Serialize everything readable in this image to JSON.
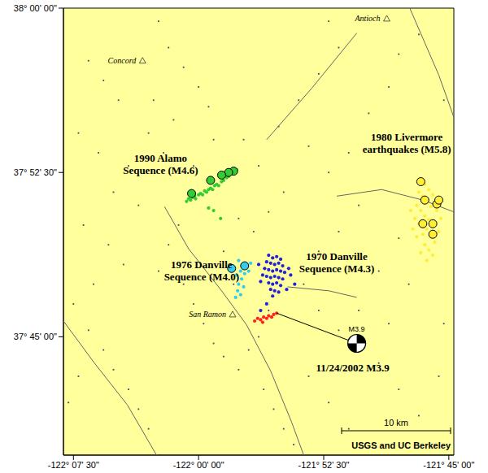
{
  "chart_data": {
    "type": "scatter",
    "grid": false,
    "xlim": [
      -122.135,
      -121.745
    ],
    "ylim": [
      37.66,
      38.0
    ],
    "xticks": [
      {
        "value": -122.125,
        "label": "-122° 07' 30\""
      },
      {
        "value": -122.0,
        "label": "-122° 00' 00\""
      },
      {
        "value": -121.875,
        "label": "-121° 52' 30\""
      },
      {
        "value": -121.75,
        "label": "-121° 45' 00\""
      }
    ],
    "yticks": [
      {
        "value": 37.75,
        "label": "37° 45' 00\""
      },
      {
        "value": 37.875,
        "label": "37° 52' 30\""
      },
      {
        "value": 38.0,
        "label": "38° 00' 00\""
      }
    ],
    "series": [
      {
        "type": "scatter",
        "marker": "dot",
        "color": "#444466",
        "x": [
          -122.11,
          -122.095,
          -122.08,
          -122.12,
          -122.1,
          -122.07,
          -122.085,
          -122.06,
          -122.115,
          -122.09,
          -122.075,
          -122.105,
          -122.125,
          -122.11,
          -122.095,
          -122.085,
          -122.07,
          -122.06,
          -122.05,
          -122.12,
          -122.13,
          -122.04,
          -122.03,
          -122.015,
          -122.0,
          -121.99,
          -122.045,
          -122.025,
          -121.985,
          -122.05,
          -122.035,
          -122.02,
          -122.03,
          -122.04,
          -122.015,
          -122.005,
          -121.995,
          -121.985,
          -121.975,
          -121.96,
          -121.95,
          -121.935,
          -121.925,
          -121.915,
          -121.905,
          -121.94,
          -121.93,
          -121.945,
          -121.96,
          -121.93,
          -121.915,
          -121.94,
          -121.955,
          -121.92,
          -121.9,
          -121.88,
          -121.86,
          -121.87,
          -121.89,
          -121.87,
          -121.85,
          -121.83,
          -121.81,
          -121.8,
          -121.84,
          -121.86,
          -121.88,
          -121.895,
          -121.88,
          -121.86,
          -121.84,
          -121.82,
          -121.8,
          -121.79,
          -121.81,
          -121.82,
          -121.8,
          -121.78,
          -121.76,
          -121.755,
          -121.77,
          -121.755,
          -121.78,
          -121.89,
          -121.87,
          -121.85,
          -121.99,
          -122.005,
          -121.975,
          -121.965
        ],
        "y": [
          37.96,
          37.945,
          37.93,
          37.905,
          37.89,
          37.88,
          37.86,
          37.85,
          37.835,
          37.82,
          37.805,
          37.79,
          37.775,
          37.755,
          37.74,
          37.725,
          37.71,
          37.695,
          37.68,
          37.72,
          37.7,
          37.99,
          37.97,
          37.955,
          37.94,
          37.925,
          37.93,
          37.915,
          37.9,
          37.905,
          37.89,
          37.835,
          37.82,
          37.8,
          37.79,
          37.775,
          37.76,
          37.745,
          37.735,
          37.725,
          37.74,
          37.71,
          37.695,
          37.68,
          37.668,
          37.75,
          37.77,
          37.83,
          37.84,
          37.845,
          37.86,
          37.88,
          37.9,
          37.91,
          37.93,
          37.95,
          37.97,
          37.99,
          37.895,
          37.875,
          37.89,
          37.92,
          37.94,
          37.965,
          37.85,
          37.83,
          37.815,
          37.79,
          37.77,
          37.755,
          37.77,
          37.8,
          37.825,
          37.79,
          37.76,
          37.73,
          37.71,
          37.69,
          37.72,
          37.76,
          37.9,
          37.93,
          37.98,
          37.72,
          37.7,
          37.68,
          37.87,
          37.88,
          37.815,
          37.79
        ]
      },
      {
        "type": "line",
        "color": "#666666",
        "x": [
          -122.034,
          -122.01,
          -121.977,
          -121.952,
          -121.928,
          -121.907,
          -121.895
        ],
        "y": [
          37.849,
          37.817,
          37.785,
          37.759,
          37.724,
          37.685,
          37.66
        ]
      },
      {
        "type": "line",
        "color": "#666666",
        "x": [
          -121.932,
          -121.887,
          -121.842
        ],
        "y": [
          37.9,
          37.939,
          37.981
        ]
      },
      {
        "type": "line",
        "color": "#666666",
        "x": [
          -121.862,
          -121.817,
          -121.776,
          -121.745
        ],
        "y": [
          37.857,
          37.862,
          37.854,
          37.845
        ]
      },
      {
        "type": "line",
        "color": "#666666",
        "x": [
          -121.789,
          -121.76,
          -121.745
        ],
        "y": [
          38.0,
          37.949,
          37.917
        ]
      },
      {
        "type": "line",
        "color": "#666666",
        "x": [
          -122.135,
          -122.104,
          -122.071,
          -122.042
        ],
        "y": [
          37.762,
          37.73,
          37.698,
          37.66
        ]
      },
      {
        "type": "line",
        "color": "#666666",
        "x": [
          -121.911,
          -121.87,
          -121.842
        ],
        "y": [
          37.788,
          37.785,
          37.78
        ]
      },
      {
        "type": "scatter",
        "marker": "point",
        "color": "#33cc33",
        "x": [
          -122.012,
          -122.01,
          -122.008,
          -122.006,
          -122.004,
          -122.003,
          -122.0,
          -121.998,
          -121.996,
          -121.994,
          -121.992,
          -121.99,
          -121.988,
          -121.986,
          -121.984,
          -121.982,
          -121.98,
          -121.977,
          -121.975,
          -121.972,
          -121.97,
          -121.967,
          -121.964,
          -121.962,
          -121.985,
          -121.978,
          -121.99
        ],
        "y": [
          37.853,
          37.855,
          37.854,
          37.856,
          37.857,
          37.855,
          37.858,
          37.859,
          37.858,
          37.861,
          37.86,
          37.862,
          37.863,
          37.862,
          37.865,
          37.866,
          37.865,
          37.868,
          37.869,
          37.871,
          37.872,
          37.874,
          37.875,
          37.877,
          37.846,
          37.84,
          37.848
        ]
      },
      {
        "type": "scatter",
        "marker": "point",
        "color": "#33ccee",
        "x": [
          -121.96,
          -121.956,
          -121.952,
          -121.958,
          -121.962,
          -121.954,
          -121.95,
          -121.957,
          -121.96,
          -121.955,
          -121.961,
          -121.958,
          -121.963,
          -121.948,
          -121.965
        ],
        "y": [
          37.808,
          37.805,
          37.803,
          37.8,
          37.797,
          37.798,
          37.8,
          37.794,
          37.79,
          37.788,
          37.785,
          37.782,
          37.78,
          37.806,
          37.803
        ]
      },
      {
        "type": "scatter",
        "marker": "point",
        "color": "#2222dd",
        "x": [
          -121.93,
          -121.926,
          -121.922,
          -121.918,
          -121.932,
          -121.928,
          -121.924,
          -121.92,
          -121.916,
          -121.934,
          -121.93,
          -121.926,
          -121.922,
          -121.918,
          -121.914,
          -121.936,
          -121.932,
          -121.928,
          -121.924,
          -121.92,
          -121.916,
          -121.93,
          -121.926,
          -121.922,
          -121.918,
          -121.928,
          -121.924,
          -121.92,
          -121.926,
          -121.91,
          -121.908,
          -121.938,
          -121.94,
          -121.912,
          -121.904,
          -121.932,
          -121.938
        ],
        "y": [
          37.812,
          37.81,
          37.811,
          37.809,
          37.807,
          37.806,
          37.805,
          37.806,
          37.804,
          37.802,
          37.801,
          37.8,
          37.801,
          37.8,
          37.799,
          37.797,
          37.796,
          37.795,
          37.796,
          37.795,
          37.794,
          37.791,
          37.79,
          37.791,
          37.789,
          37.786,
          37.785,
          37.784,
          37.781,
          37.802,
          37.797,
          37.792,
          37.805,
          37.786,
          37.79,
          37.775,
          37.77
        ]
      },
      {
        "type": "scatter",
        "marker": "point",
        "color": "#ffee33",
        "x": [
          -121.778,
          -121.774,
          -121.77,
          -121.78,
          -121.776,
          -121.766,
          -121.772,
          -121.768,
          -121.782,
          -121.778,
          -121.762,
          -121.774,
          -121.77,
          -121.784,
          -121.78,
          -121.766,
          -121.772,
          -121.776,
          -121.768,
          -121.782,
          -121.764,
          -121.774,
          -121.77,
          -121.778,
          -121.76,
          -121.786,
          -121.758,
          -121.788,
          -121.766,
          -121.772
        ],
        "y": [
          37.87,
          37.866,
          37.862,
          37.86,
          37.857,
          37.858,
          37.852,
          37.849,
          37.85,
          37.846,
          37.846,
          37.842,
          37.839,
          37.84,
          37.836,
          37.835,
          37.832,
          37.828,
          37.826,
          37.826,
          37.822,
          37.82,
          37.816,
          37.814,
          37.83,
          37.832,
          37.84,
          37.846,
          37.812,
          37.808
        ]
      },
      {
        "type": "scatter",
        "marker": "point",
        "color": "#ff2222",
        "x": [
          -121.944,
          -121.941,
          -121.938,
          -121.935,
          -121.932,
          -121.93,
          -121.927,
          -121.925,
          -121.922,
          -121.936
        ],
        "y": [
          37.762,
          37.764,
          37.763,
          37.765,
          37.764,
          37.766,
          37.765,
          37.767,
          37.768,
          37.761
        ]
      },
      {
        "type": "scatter",
        "marker": "circle",
        "color": "#33cc33",
        "x": [
          -121.965,
          -121.97,
          -121.977,
          -121.988,
          -122.007
        ],
        "y": [
          37.876,
          37.875,
          37.873,
          37.869,
          37.859
        ]
      },
      {
        "type": "scatter",
        "marker": "circle",
        "color": "#33ccee",
        "x": [
          -121.967,
          -121.954
        ],
        "y": [
          37.802,
          37.804
        ]
      },
      {
        "type": "scatter",
        "marker": "circle",
        "color": "#ffee33",
        "x": [
          -121.778,
          -121.762,
          -121.776,
          -121.766,
          -121.766,
          -121.774,
          -121.76
        ],
        "y": [
          37.868,
          37.851,
          37.836,
          37.836,
          37.828,
          37.854,
          37.854
        ]
      },
      {
        "type": "line",
        "color": "#000000",
        "x": [
          -121.922,
          -121.842
        ],
        "y": [
          37.768,
          37.745
        ]
      },
      {
        "type": "scatter",
        "marker": "beachball",
        "color": "#000000",
        "label": "M3.9",
        "x": [
          -121.842
        ],
        "y": [
          37.745
        ]
      }
    ],
    "annotations": [
      {
        "lines": [
          "1990 Alamo",
          "Sequence (M4.6)"
        ],
        "x": -122.038,
        "y": 37.881
      },
      {
        "lines": [
          "1980 Livermore",
          "earthquakes (M5.8)"
        ],
        "x": -121.792,
        "y": 37.897
      },
      {
        "lines": [
          "1976 Danville",
          "Sequence (M4.0)"
        ],
        "x": -121.997,
        "y": 37.8
      },
      {
        "lines": [
          "1970 Danville",
          "Sequence (M4.3)"
        ],
        "x": -121.862,
        "y": 37.806
      },
      {
        "lines": [
          "11/24/2002 M3.9"
        ],
        "x": -121.846,
        "y": 37.726
      }
    ],
    "places": [
      {
        "name": "Concord",
        "x": -122.056,
        "y": 37.96
      },
      {
        "name": "Antioch",
        "x": -121.812,
        "y": 37.992
      },
      {
        "name": "San Ramon",
        "x": -121.966,
        "y": 37.767
      }
    ],
    "scale_bar_label": "10 km",
    "credit": "USGS and UC Berkeley"
  }
}
